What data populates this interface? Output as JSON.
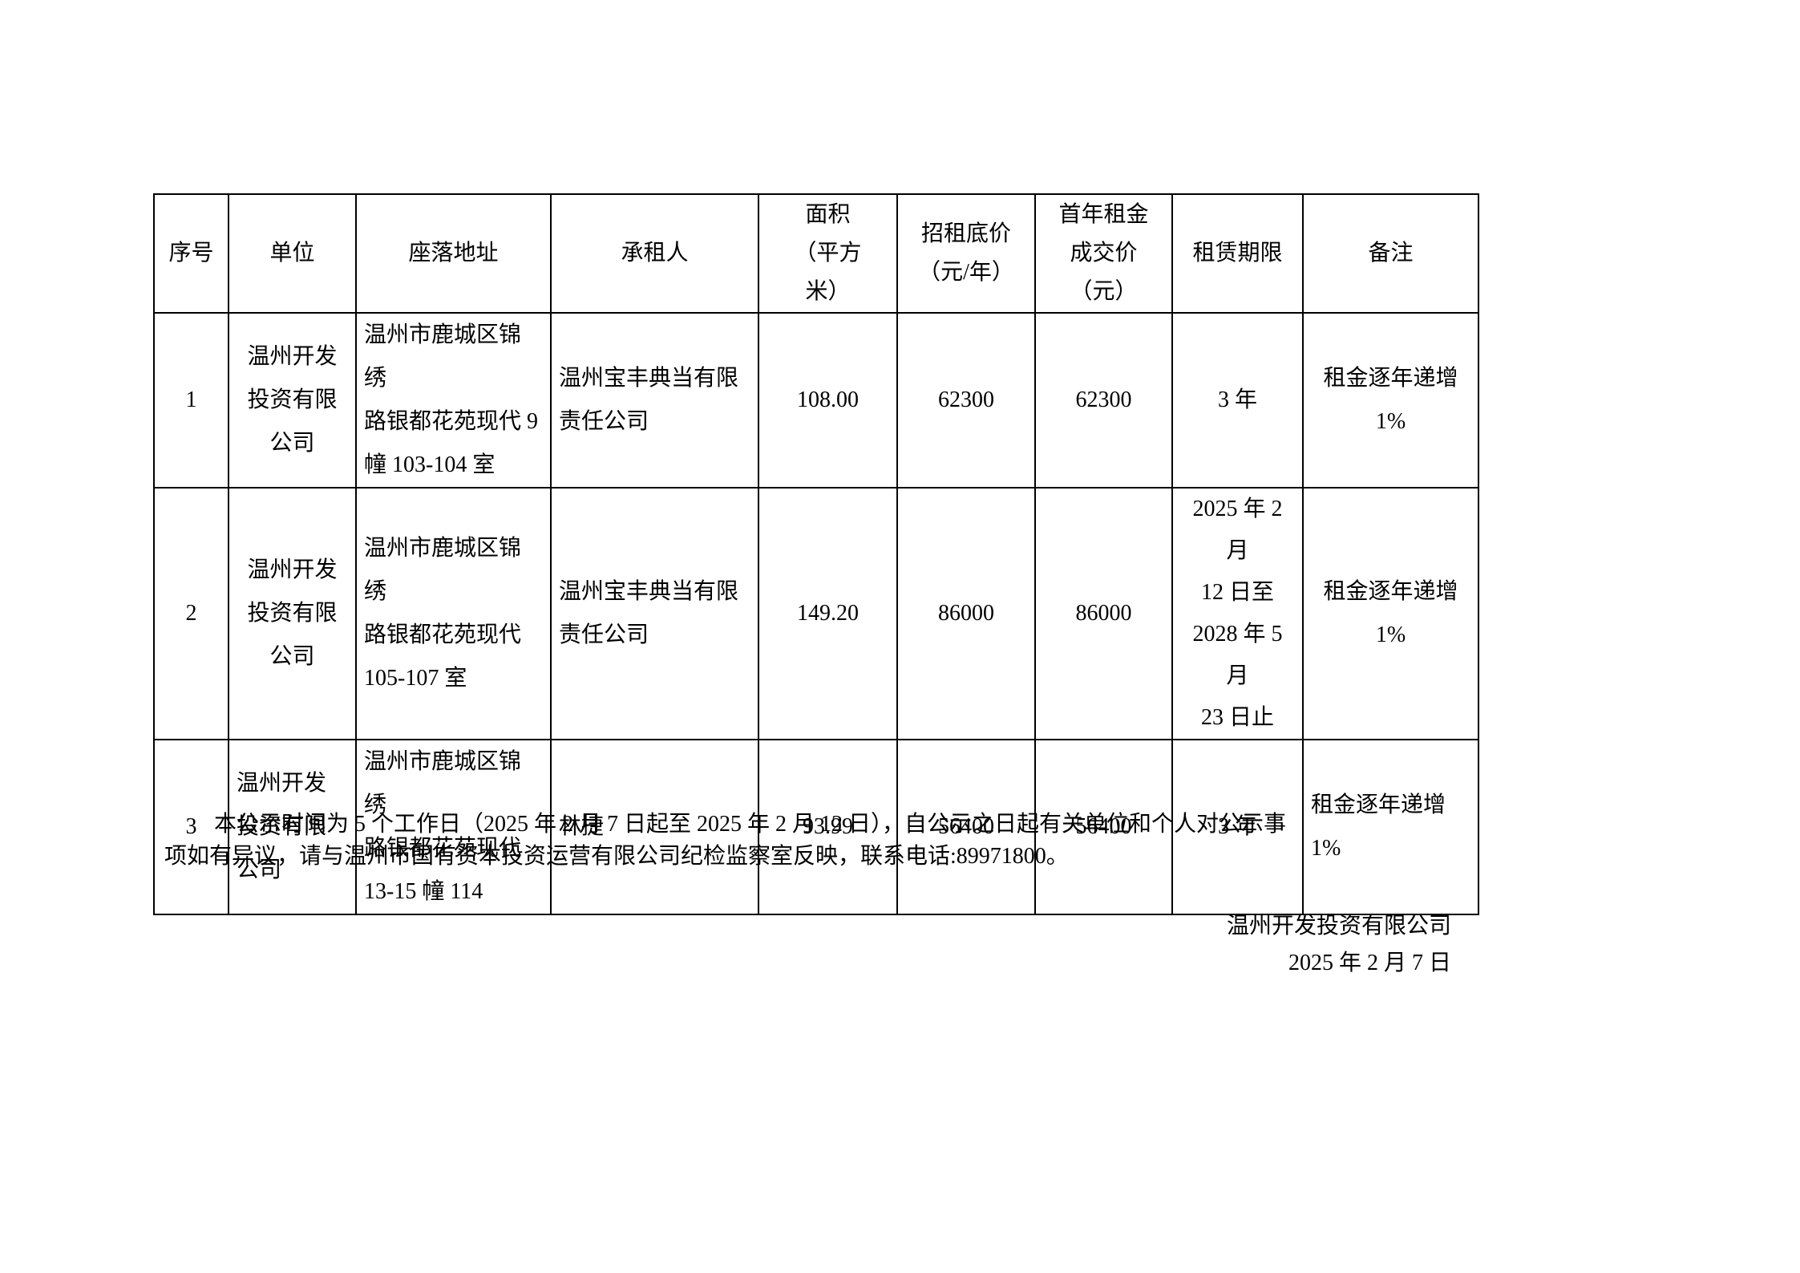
{
  "table": {
    "headers": [
      "序号",
      "单位",
      "座落地址",
      "承租人",
      "面积\n（平方\n米）",
      "招租底价\n（元/年）",
      "首年租金\n成交价\n（元）",
      "租赁期限",
      "备注"
    ],
    "rows": [
      [
        "1",
        "温州开发\n投资有限\n公司",
        "温州市鹿城区锦绣\n路银都花苑现代 9\n幢 103-104 室",
        "温州宝丰典当有限\n责任公司",
        "108.00",
        "62300",
        "62300",
        "3 年",
        "租金逐年递增\n1%"
      ],
      [
        "2",
        "温州开发\n投资有限\n公司",
        "温州市鹿城区锦绣\n路银都花苑现代\n105-107 室",
        "温州宝丰典当有限\n责任公司",
        "149.20",
        "86000",
        "86000",
        "2025 年 2 月\n12 日至\n2028 年 5 月\n23 日止",
        "租金逐年递增\n1%"
      ],
      [
        "3",
        "温州开发\n投资有限\n公司",
        "温州市鹿城区锦绣\n路银都花苑现代\n13-15 幢 114",
        "林捷",
        "93.99",
        "56400",
        "56400",
        "3 年",
        "租金逐年递增\n1%"
      ]
    ]
  },
  "notice": {
    "text": "本公示时间为 5 个工作日（2025 年 2 月 7 日起至 2025 年 2 月 12 日），自公示之日起有关单位和个人对公示事\n项如有异议，请与温州市国有资本投资运营有限公司纪检监察室反映，联系电话:89971800。"
  },
  "signature": {
    "company": "温州开发投资有限公司",
    "date": "2025 年 2 月 7 日"
  }
}
